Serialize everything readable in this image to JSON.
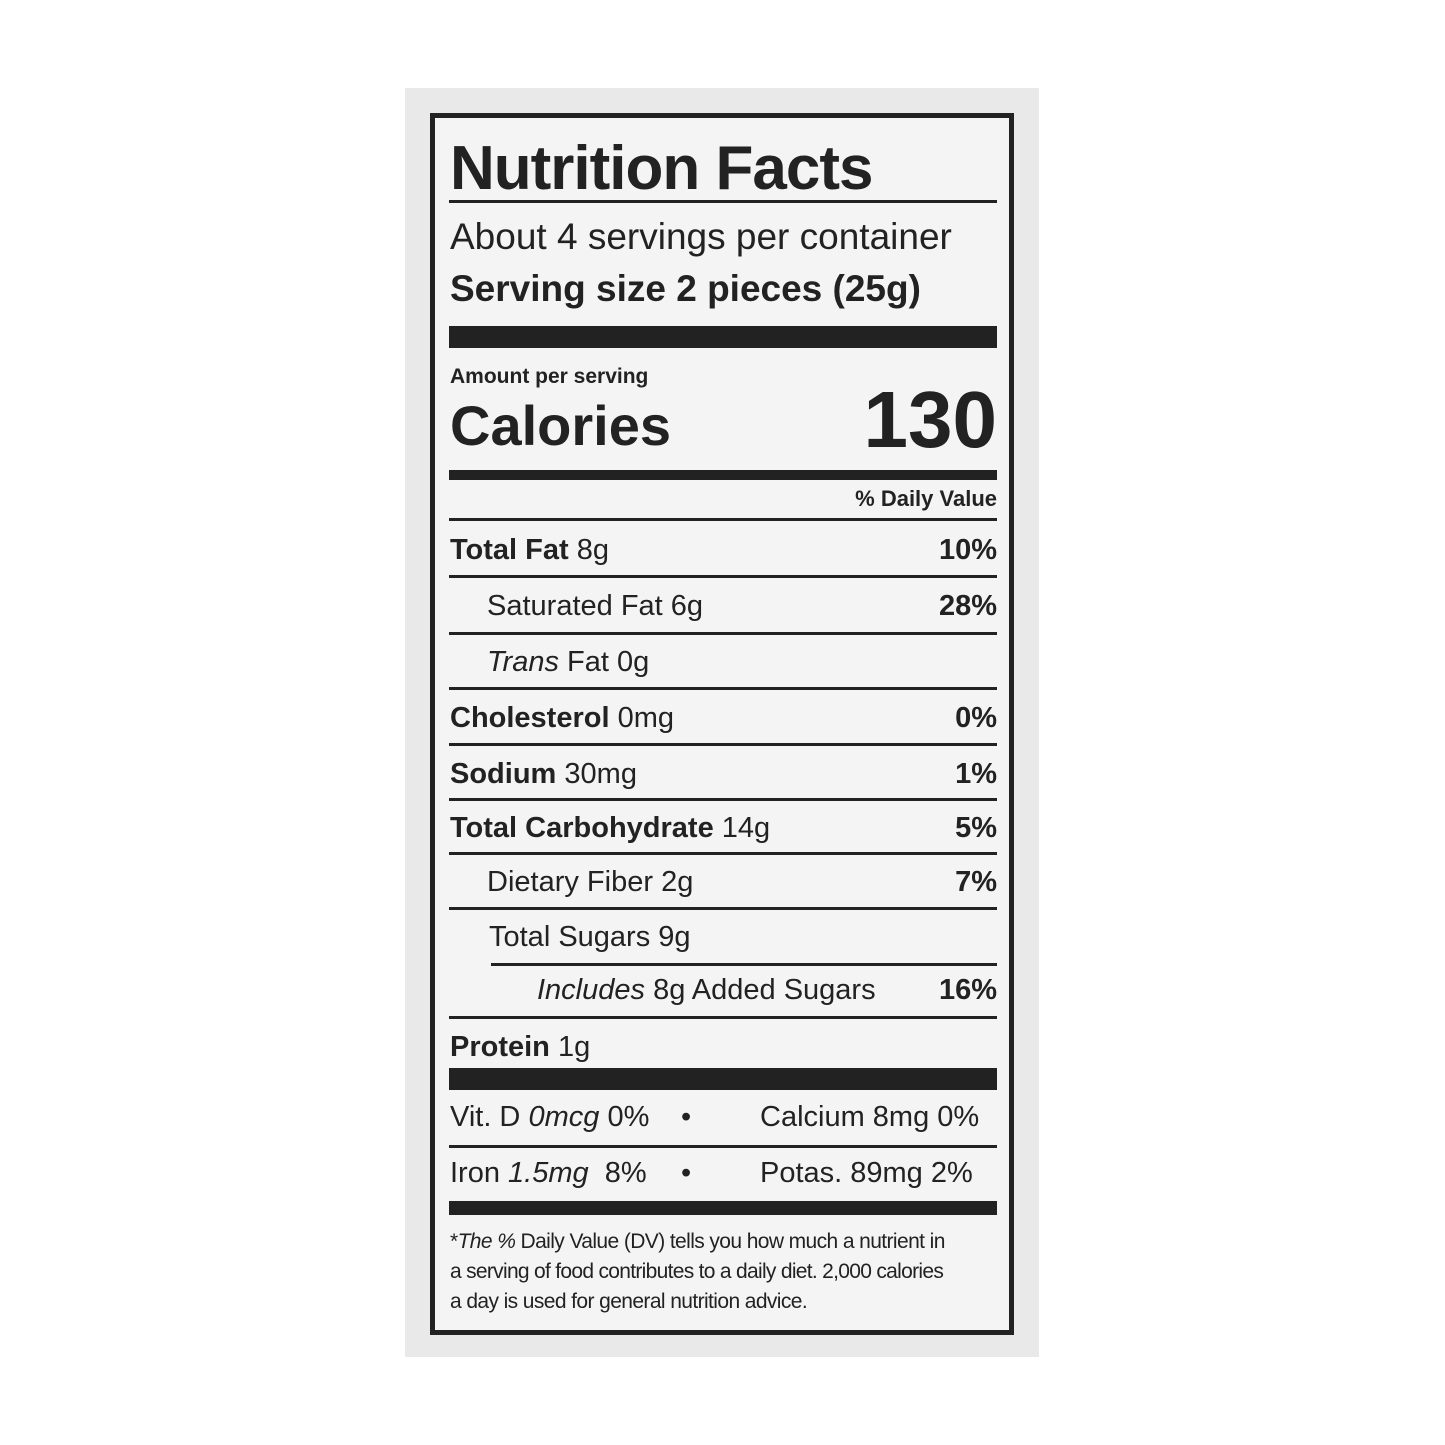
{
  "title": "Nutrition Facts",
  "servings_per_container": "About 4 servings per container",
  "serving_size": "Serving size 2 pieces (25g)",
  "amount_per_serving": "Amount per serving",
  "calories_label": "Calories",
  "calories_value": "130",
  "daily_value_header": "% Daily Value",
  "nutrients": [
    {
      "name": "Total Fat",
      "amount": "8g",
      "dv": "10%"
    },
    {
      "name": "Saturated Fat",
      "amount": "6g",
      "dv": "28%"
    },
    {
      "name": "Trans",
      "name_suffix": "Fat",
      "amount": "0g",
      "dv": ""
    },
    {
      "name": "Cholesterol",
      "amount": "0mg",
      "dv": "0%"
    },
    {
      "name": "Sodium",
      "amount": "30mg",
      "dv": "1%"
    },
    {
      "name": "Total Carbohydrate",
      "amount": "14g",
      "dv": "5%"
    },
    {
      "name": "Dietary Fiber",
      "amount": "2g",
      "dv": "7%"
    },
    {
      "name": "Total Sugars",
      "amount": "9g",
      "dv": ""
    },
    {
      "name": "Includes",
      "amount": "8g Added Sugars",
      "dv": "16%"
    },
    {
      "name": "Protein",
      "amount": "1g",
      "dv": ""
    }
  ],
  "vitamins": [
    {
      "left_name": "Vit. D",
      "left_amount": "0mcg",
      "left_dv": "0%",
      "right": "Calcium 8mg 0%"
    },
    {
      "left_name": "Iron",
      "left_amount": "1.5mg",
      "left_dv": "8%",
      "right": "Potas. 89mg 2%"
    }
  ],
  "bullet": "•",
  "footnote": {
    "star": "*",
    "lead": "The %",
    "line1": "Daily Value (DV) tells you how much a nutrient in",
    "line2": "a serving of food contributes to a daily diet. 2,000 calories",
    "line3": "a day is used for general nutrition advice."
  }
}
